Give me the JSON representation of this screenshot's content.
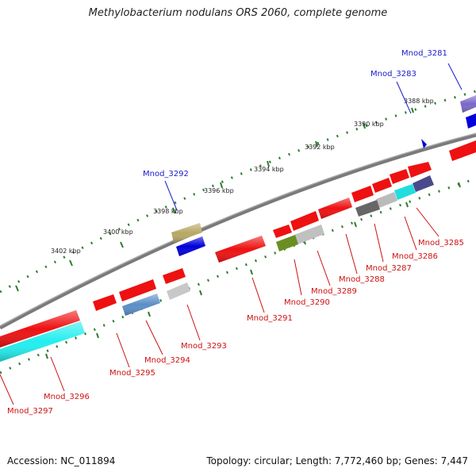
{
  "title": "Methylobacterium nodulans ORS 2060, complete genome",
  "footer": {
    "accession": "Accession: NC_011894",
    "topology": "Topology: circular; Length: 7,772,460 bp; Genes: 7,447"
  },
  "colors": {
    "backbone": "#808080",
    "forward_label": "#1a1acc",
    "reverse_label": "#cc1111",
    "ruler_ticks": "#2e7d2e"
  },
  "scale": {
    "ticks": [
      {
        "label": "3388 kbp"
      },
      {
        "label": "3390 kbp"
      },
      {
        "label": "3392 kbp"
      },
      {
        "label": "3394 kbp"
      },
      {
        "label": "3396 kbp"
      },
      {
        "label": "3398 kbp"
      },
      {
        "label": "3400 kbp"
      },
      {
        "label": "3402 kbp"
      }
    ]
  },
  "labels": {
    "forward": [
      {
        "name": "Mnod_3281"
      },
      {
        "name": "Mnod_3283"
      },
      {
        "name": "Mnod_3292"
      }
    ],
    "reverse": [
      {
        "name": "Mnod_3285"
      },
      {
        "name": "Mnod_3286"
      },
      {
        "name": "Mnod_3287"
      },
      {
        "name": "Mnod_3288"
      },
      {
        "name": "Mnod_3289"
      },
      {
        "name": "Mnod_3290"
      },
      {
        "name": "Mnod_3291"
      },
      {
        "name": "Mnod_3293"
      },
      {
        "name": "Mnod_3294"
      },
      {
        "name": "Mnod_3295"
      },
      {
        "name": "Mnod_3296"
      },
      {
        "name": "Mnod_3297"
      }
    ]
  }
}
